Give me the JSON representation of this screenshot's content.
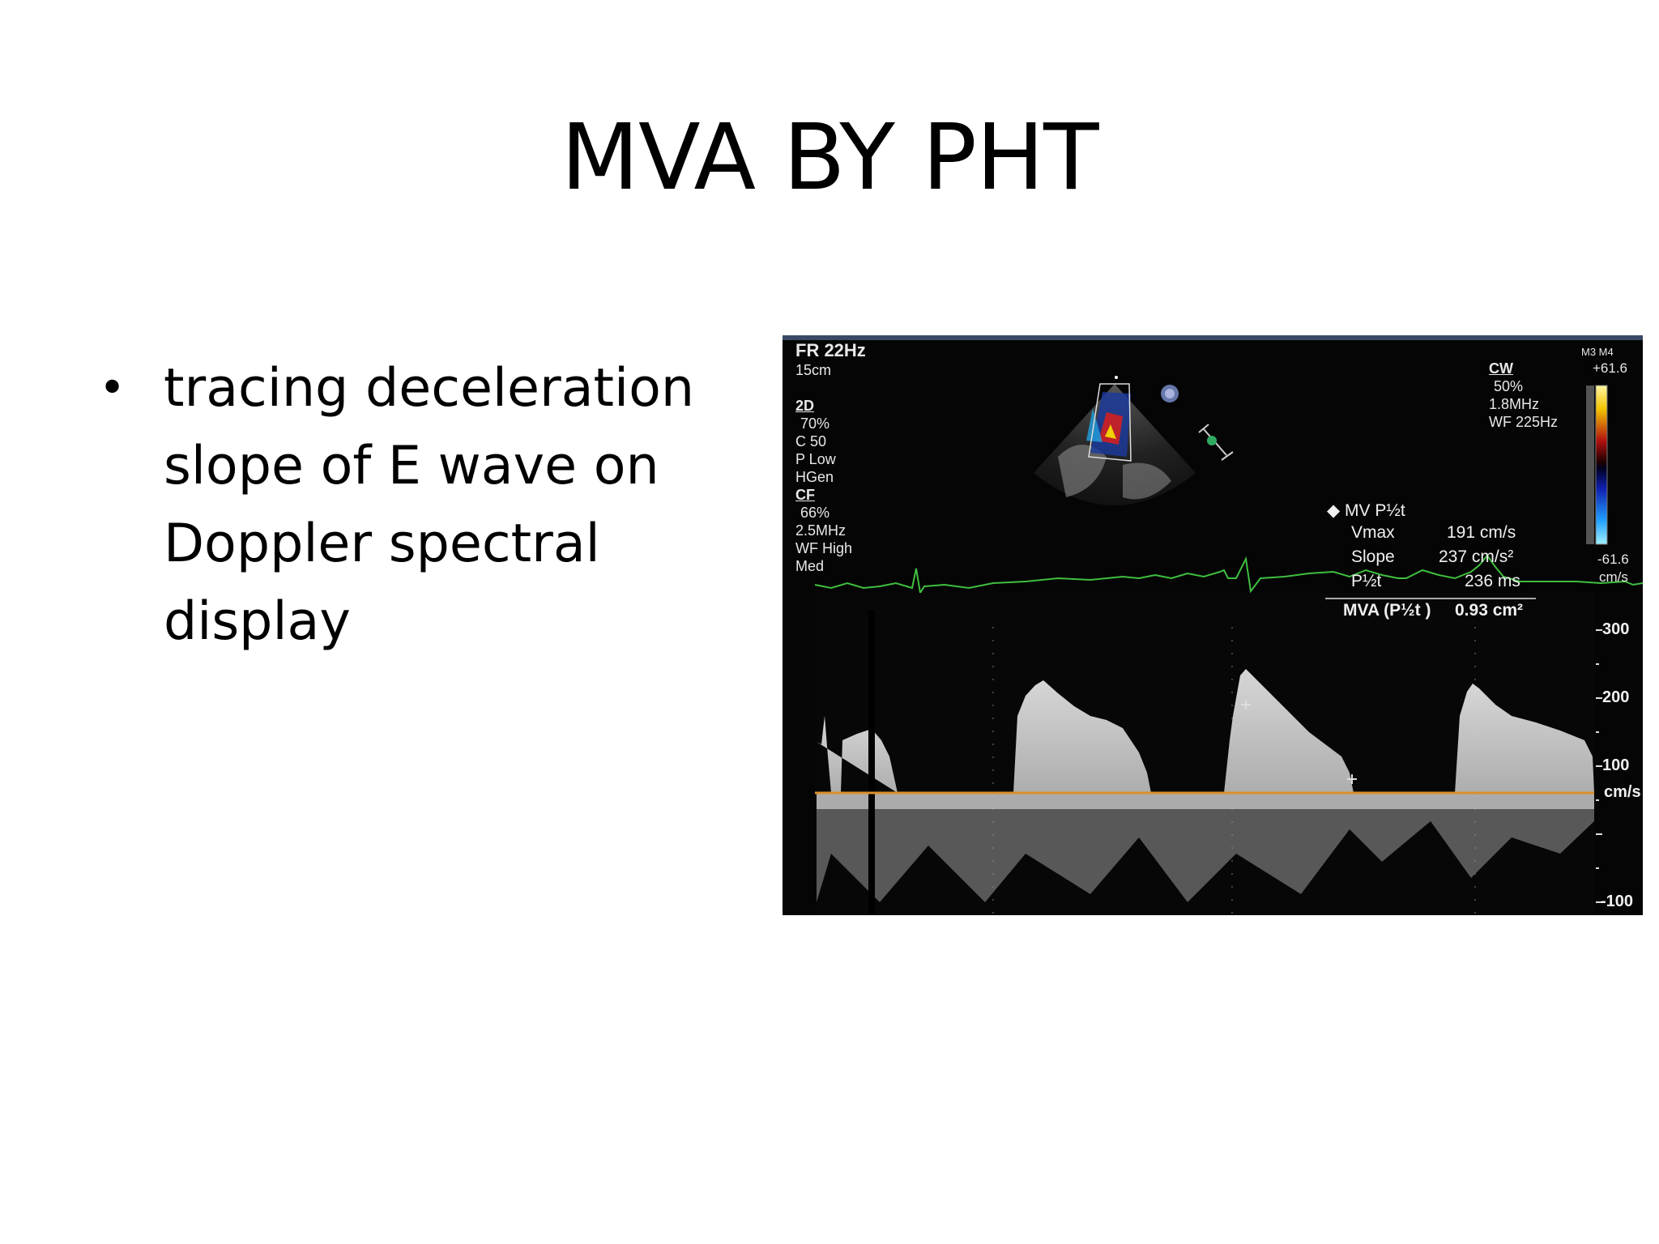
{
  "slide": {
    "title": "MVA BY PHT",
    "bullets": [
      "tracing deceleration slope of E wave on Doppler spectral display"
    ]
  },
  "echo": {
    "header": {
      "frame_rate": "FR 22Hz",
      "depth": "15cm"
    },
    "mode_2d": {
      "label": "2D",
      "gain": "70%",
      "compression": "C 50",
      "power": "P Low",
      "freq": "HGen"
    },
    "mode_cf": {
      "label": "CF",
      "gain": "66%",
      "freq": "2.5MHz",
      "filter": "WF High",
      "level": "Med"
    },
    "cw": {
      "label": "CW",
      "gain": "50%",
      "freq": "1.8MHz",
      "filter": "WF 225Hz"
    },
    "color_bar": {
      "top_tag": "M3 M4",
      "max": "+61.6",
      "min": "-61.6",
      "unit": "cm/s"
    },
    "measurements": {
      "title": "MV P½t",
      "rows": [
        {
          "label": "Vmax",
          "value": "191 cm/s"
        },
        {
          "label": "Slope",
          "value": "237 cm/s²"
        },
        {
          "label": "P½t",
          "value": "236 ms"
        }
      ],
      "result_label": "MVA (P½t )",
      "result_value": "0.93 cm²"
    },
    "velocity_scale": {
      "labels": [
        "300",
        "200",
        "100",
        "cm/s",
        "-100"
      ],
      "values": [
        300,
        200,
        100,
        0,
        -100
      ]
    },
    "colors": {
      "ecg": "#3fbf3f",
      "baseline": "#d9902a",
      "background": "#050505"
    }
  }
}
